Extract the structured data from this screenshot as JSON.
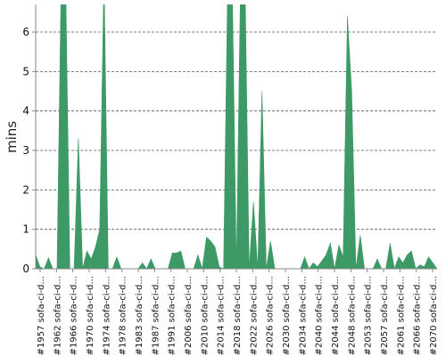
{
  "chart_data": {
    "type": "area",
    "ylabel": "mins",
    "ylim": [
      0,
      6.7
    ],
    "y_ticks": [
      0,
      1,
      2,
      3,
      4,
      5,
      6
    ],
    "grid": "horizontal dashed",
    "color": "#3d9a66",
    "x_tick_labels": [
      "#1957 sofa-ci-d...",
      "#1962 sofa-ci-d...",
      "#1966 sofa-ci-d...",
      "#1970 sofa-ci-d...",
      "#1974 sofa-ci-d...",
      "#1978 sofa-ci-d...",
      "#1983 sofa-ci-d...",
      "#1987 sofa-ci-d...",
      "#1991 sofa-ci-d...",
      "#2006 sofa-ci-d...",
      "#2010 sofa-ci-d...",
      "#2014 sofa-ci-d...",
      "#2018 sofa-ci-d...",
      "#2022 sofa-ci-d...",
      "#2026 sofa-ci-d...",
      "#2030 sofa-ci-d...",
      "#2034 sofa-ci-d...",
      "#2040 sofa-ci-d...",
      "#2044 sofa-ci-d...",
      "#2048 sofa-ci-d...",
      "#2053 sofa-ci-d...",
      "#2057 sofa-ci-d...",
      "#2061 sofa-ci-d...",
      "#2066 sofa-ci-d...",
      "#2070 sofa-ci-d..."
    ],
    "values": [
      0.35,
      0.05,
      0.0,
      0.28,
      0.0,
      0.0,
      7.5,
      7.5,
      0.0,
      0.0,
      3.3,
      0.0,
      0.45,
      0.25,
      0.55,
      1.0,
      7.5,
      0.0,
      0.0,
      0.3,
      0.0,
      0.0,
      0.0,
      0.0,
      0.0,
      0.15,
      0.0,
      0.25,
      0.0,
      0.0,
      0.0,
      0.0,
      0.4,
      0.4,
      0.45,
      0.0,
      0.0,
      0.0,
      0.35,
      0.0,
      0.8,
      0.7,
      0.55,
      0.05,
      0.0,
      7.5,
      7.5,
      0.0,
      7.5,
      7.5,
      0.0,
      1.7,
      0.0,
      4.5,
      0.0,
      0.7,
      0.0,
      0.0,
      0.0,
      0.0,
      0.0,
      0.0,
      0.0,
      0.3,
      0.0,
      0.15,
      0.05,
      0.2,
      0.35,
      0.65,
      0.0,
      0.6,
      0.3,
      6.4,
      4.5,
      0.0,
      0.85,
      0.0,
      0.0,
      0.0,
      0.25,
      0.0,
      0.0,
      0.65,
      0.0,
      0.3,
      0.15,
      0.35,
      0.45,
      0.0,
      0.1,
      0.05,
      0.3,
      0.15,
      0.0
    ]
  }
}
